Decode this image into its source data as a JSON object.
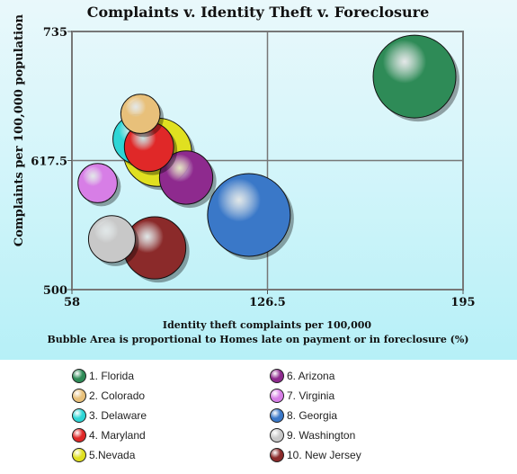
{
  "chart_data": {
    "type": "bubble",
    "title": "Complaints v. Identity Theft v. Foreclosure",
    "xlabel": "Identity theft complaints per 100,000",
    "ylabel": "Complaints per 100,000 population",
    "subtitle": "Bubble Area is proportional to Homes late on payment or in foreclosure (%)",
    "xlim": [
      58,
      195
    ],
    "ylim": [
      500,
      735
    ],
    "xticks": [
      "58",
      "126.5",
      "195"
    ],
    "yticks": [
      "500",
      "617.5",
      "735"
    ],
    "grid": true,
    "legend_position": "bottom",
    "series": [
      {
        "name": "1. Florida",
        "x": 178,
        "y": 694,
        "size": 2.0,
        "color": "#2e8b57"
      },
      {
        "name": "2. Colorado",
        "x": 82,
        "y": 660,
        "size": 0.45,
        "color": "#e8c07a"
      },
      {
        "name": "3. Delaware",
        "x": 81,
        "y": 637,
        "size": 0.71,
        "color": "#2ed6d6"
      },
      {
        "name": "4. Maryland",
        "x": 85,
        "y": 630,
        "size": 0.71,
        "color": "#e02828"
      },
      {
        "name": "5.Nevada",
        "x": 88,
        "y": 625,
        "size": 1.36,
        "color": "#e0e020"
      },
      {
        "name": "6. Arizona",
        "x": 98,
        "y": 602,
        "size": 0.83,
        "color": "#8e2a8e"
      },
      {
        "name": "7. Virginia",
        "x": 67,
        "y": 597,
        "size": 0.45,
        "color": "#d77ee6"
      },
      {
        "name": "8. Georgia",
        "x": 120,
        "y": 568,
        "size": 2.0,
        "color": "#3a78c8"
      },
      {
        "name": "9. Washington",
        "x": 72,
        "y": 546,
        "size": 0.64,
        "color": "#c8c8c8"
      },
      {
        "name": "10. New Jersey",
        "x": 87,
        "y": 538,
        "size": 1.13,
        "color": "#8b2a2a"
      }
    ]
  },
  "legend": {
    "items": [
      {
        "label": "1. Florida",
        "color": "#2e8b57"
      },
      {
        "label": "2. Colorado",
        "color": "#e8c07a"
      },
      {
        "label": "3. Delaware",
        "color": "#2ed6d6"
      },
      {
        "label": "4. Maryland",
        "color": "#e02828"
      },
      {
        "label": "5.Nevada",
        "color": "#e0e020"
      },
      {
        "label": "6. Arizona",
        "color": "#8e2a8e"
      },
      {
        "label": "7. Virginia",
        "color": "#d77ee6"
      },
      {
        "label": "8. Georgia",
        "color": "#3a78c8"
      },
      {
        "label": "9. Washington",
        "color": "#c8c8c8"
      },
      {
        "label": "10. New Jersey",
        "color": "#8b2a2a"
      }
    ]
  }
}
